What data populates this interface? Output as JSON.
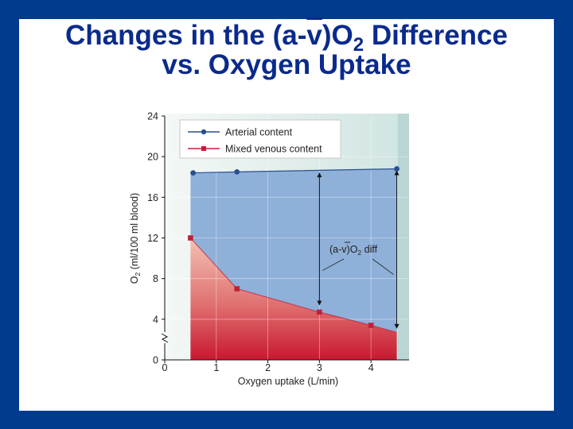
{
  "slide": {
    "title_line1_pre": "Changes in the (a-",
    "title_vbar": "v",
    "title_line1_post": ")O",
    "title_sub": "2",
    "title_line1_end": " Difference",
    "title_line2": "vs. Oxygen Uptake"
  },
  "chart_data": {
    "type": "line",
    "xlabel": "Oxygen uptake (L/min)",
    "ylabel": "O2 (ml/100 ml blood)",
    "ylabel_main": "O",
    "ylabel_sub": "2",
    "ylabel_rest": " (ml/100 ml blood)",
    "xlim": [
      0,
      4.8
    ],
    "ylim": [
      0,
      24
    ],
    "xticks": [
      "0",
      "1",
      "2",
      "3",
      "4"
    ],
    "yticks": [
      "0",
      "4",
      "8",
      "12",
      "16",
      "20",
      "24"
    ],
    "series": [
      {
        "name": "Arterial content",
        "color": "#2a4f8f",
        "marker": "circle",
        "x": [
          0.55,
          1.4,
          4.5
        ],
        "y": [
          18.4,
          18.5,
          18.8
        ]
      },
      {
        "name": "Mixed venous content",
        "color": "#c0203a",
        "marker": "square",
        "x": [
          0.5,
          1.4,
          3.0,
          4.0
        ],
        "y": [
          12.0,
          7.0,
          4.7,
          3.4
        ]
      }
    ],
    "extra_points": {
      "venous_end": {
        "x": 4.5,
        "y": 2.7
      }
    },
    "annotation": {
      "text_pre": "(a-v)O",
      "text_sub": "2",
      "text_post": " diff"
    },
    "colors": {
      "frame_bg": "#cfe4e4",
      "plot_bg": "#e8f2f0",
      "blue_area": "#8fb0d8",
      "red_area_top": "#f0b8a8",
      "red_area_bottom": "#c81830"
    }
  }
}
